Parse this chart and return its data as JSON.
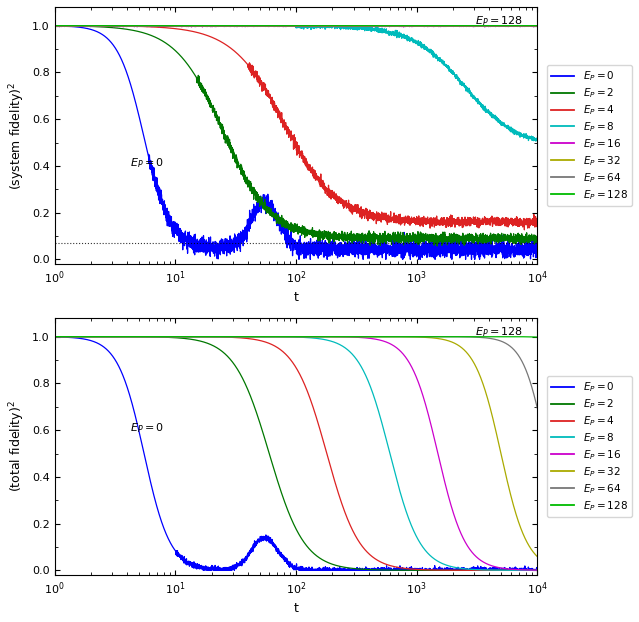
{
  "colors": {
    "EP0": "#0000FF",
    "EP2": "#007700",
    "EP4": "#DD2222",
    "EP8": "#00BBBB",
    "EP16": "#CC00CC",
    "EP32": "#AAAA00",
    "EP64": "#777777",
    "EP128": "#00BB00"
  },
  "legend_labels": [
    "$E_P=0$",
    "$E_P=2$",
    "$E_P=4$",
    "$E_P=8$",
    "$E_P=16$",
    "$E_P=32$",
    "$E_P=64$",
    "$E_P=128$"
  ],
  "xlabel": "t",
  "ylabel_top": "(system fidelity)$^2$",
  "ylabel_bottom": "(total fidelity)$^2$",
  "xmin": 1,
  "xmax": 10000,
  "dotted_line_y": 0.07,
  "figwidth": 6.39,
  "figheight": 6.22,
  "dpi": 100
}
